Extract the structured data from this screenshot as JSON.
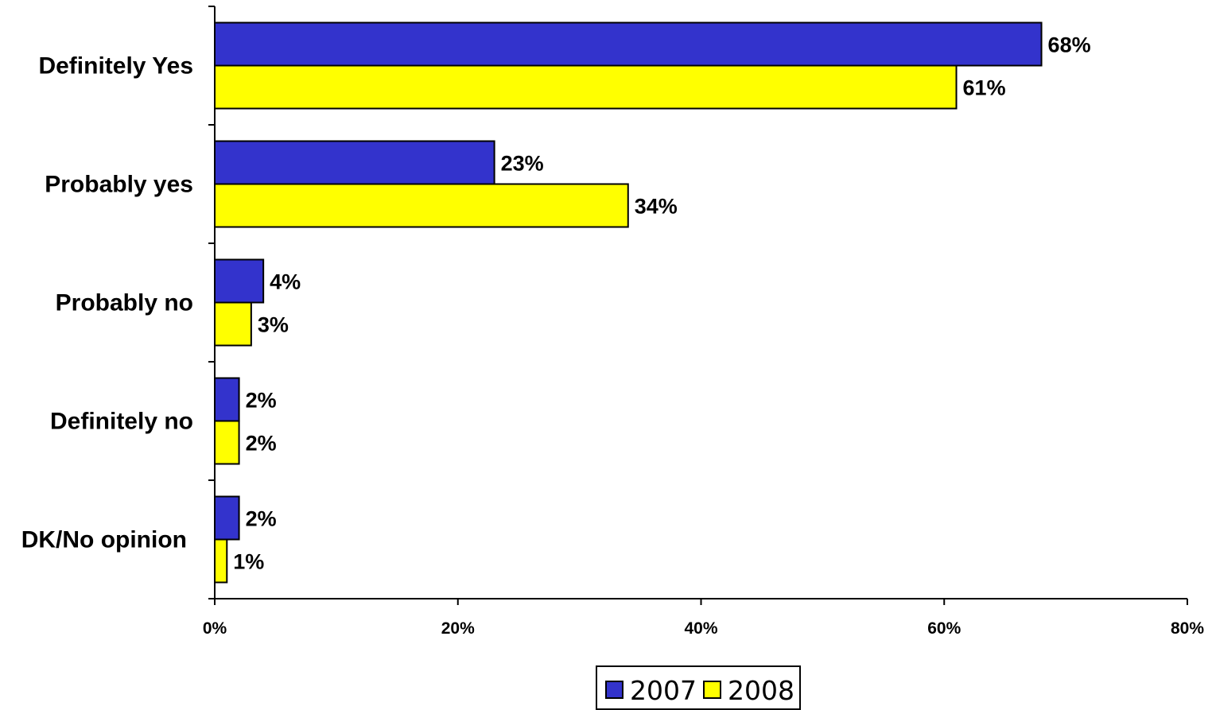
{
  "chart_data": {
    "type": "bar",
    "orientation": "horizontal",
    "categories": [
      "Definitely Yes",
      "Probably yes",
      "Probably no",
      "Definitely no",
      "DK/No opinion"
    ],
    "series": [
      {
        "name": "2007",
        "values": [
          68,
          23,
          4,
          2,
          2
        ],
        "labels": [
          "68%",
          "23%",
          "4%",
          "2%",
          "2%"
        ],
        "color": "#3333CC"
      },
      {
        "name": "2008",
        "values": [
          61,
          34,
          3,
          2,
          1
        ],
        "labels": [
          "61%",
          "34%",
          "3%",
          "2%",
          "1%"
        ],
        "color": "#FFFF00"
      }
    ],
    "xlim": [
      0,
      80
    ],
    "xticks": [
      0,
      20,
      40,
      60,
      80
    ],
    "xtick_labels": [
      "0%",
      "20%",
      "40%",
      "60%",
      "80%"
    ],
    "title": "",
    "xlabel": "",
    "ylabel": "",
    "grid": false,
    "legend": "bottom-center"
  }
}
